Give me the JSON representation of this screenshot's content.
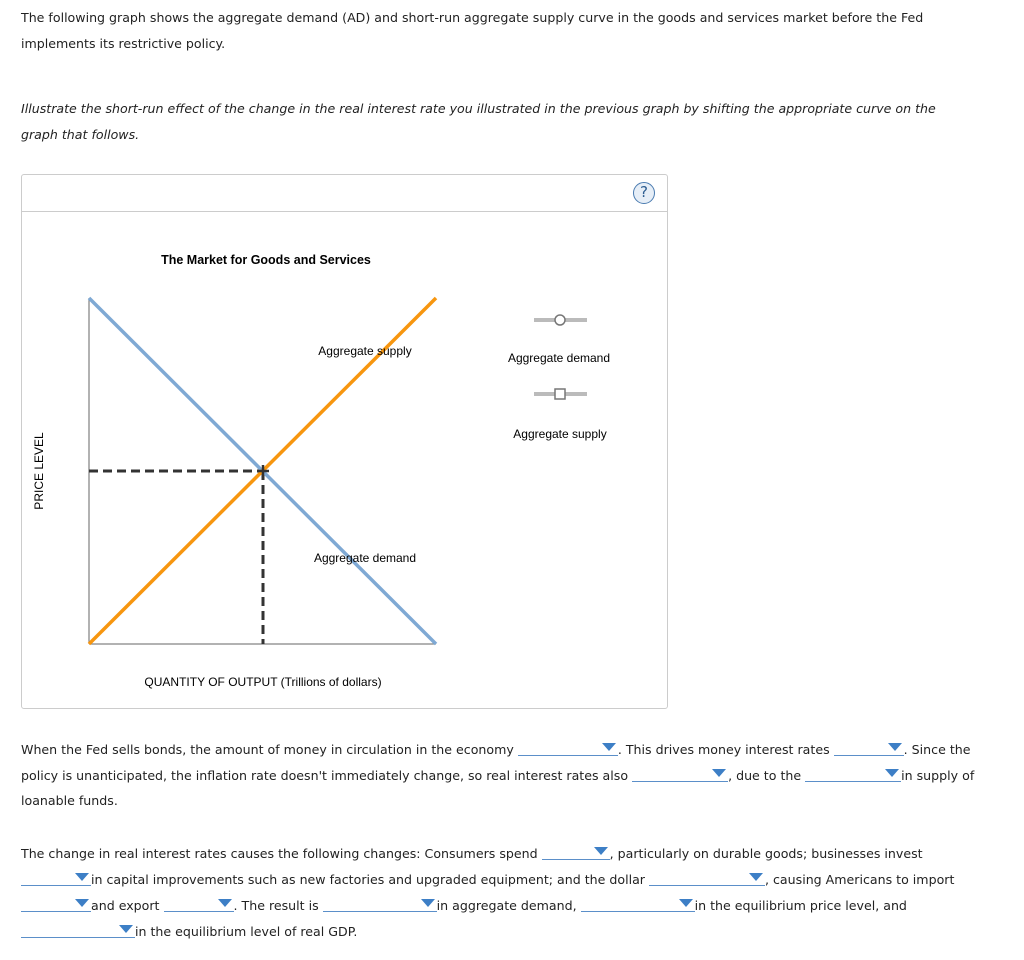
{
  "intro": {
    "line1": "The following graph shows the aggregate demand (AD) and short-run aggregate supply curve in the goods and services market before the Fed",
    "line2": "implements its restrictive policy.",
    "instr1": "Illustrate the short-run effect of the change in the real interest rate you illustrated in the previous graph by shifting the appropriate curve on the",
    "instr2": "graph that follows."
  },
  "graph": {
    "help_label": "?",
    "chart_data": {
      "type": "line",
      "title": "The Market for Goods and Services",
      "xlabel": "QUANTITY OF OUTPUT (Trillions of dollars)",
      "ylabel": "PRICE LEVEL",
      "series": [
        {
          "name": "Aggregate demand",
          "color": "#7fa9d4",
          "slope": "downward"
        },
        {
          "name": "Aggregate supply",
          "color": "#f7960f",
          "slope": "upward"
        }
      ],
      "equilibrium_marked": true,
      "legend": {
        "placement": "right",
        "items": [
          {
            "label": "Aggregate demand",
            "marker": "circle"
          },
          {
            "label": "Aggregate supply",
            "marker": "square"
          }
        ]
      }
    }
  },
  "text": {
    "p1a": "When the Fed sells bonds, the amount of money in circulation in the economy",
    "p1b": ". This drives money interest rates",
    "p1c": ". Since the",
    "p1d": "policy is unanticipated, the inflation rate doesn't immediately change, so real interest rates also",
    "p1e": ", due to the",
    "p1f": "in supply of",
    "p1g": "loanable funds.",
    "p2a": "The change in real interest rates causes the following changes: Consumers spend",
    "p2b": ", particularly on durable goods; businesses invest",
    "p2c": "in capital improvements such as new factories and upgraded equipment; and the dollar",
    "p2d": ", causing Americans to import",
    "p2e": "and export",
    "p2f": ". The result is",
    "p2g": "in aggregate demand,",
    "p2h": "in the equilibrium price level, and",
    "p2i": "in the equilibrium level of real GDP."
  }
}
